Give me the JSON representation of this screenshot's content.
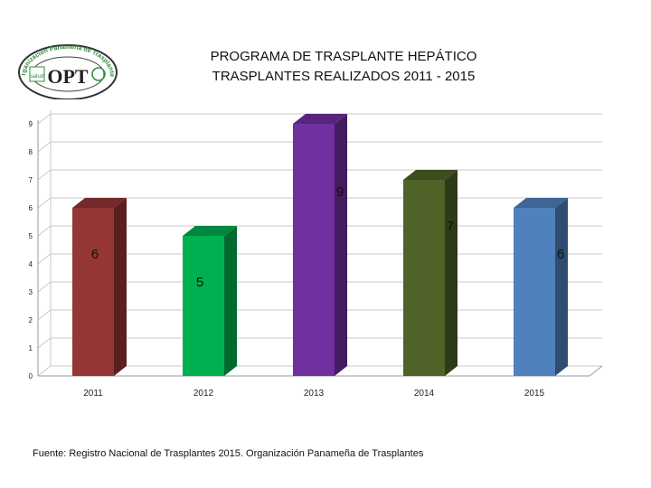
{
  "logo": {
    "arc_text": "Organización Panameña de Trasplantes",
    "mark": "OPT",
    "left_badge": "salud",
    "colors": {
      "ring": "#333333",
      "green": "#2e8b3a",
      "badge_bg": "#ffffff"
    }
  },
  "source": "Fuente: Registro Nacional de Trasplantes 2015.  Organización Panameña de Trasplantes",
  "chart_data": {
    "type": "bar",
    "title": "PROGRAMA DE TRASPLANTE HEPÁTICO",
    "subtitle": "TRASPLANTES REALIZADOS  2011 - 2015",
    "categories": [
      "2011",
      "2012",
      "2013",
      "2014",
      "2015"
    ],
    "values": [
      6,
      5,
      9,
      7,
      6
    ],
    "data_labels": [
      "6",
      "5",
      "9",
      "7",
      "6"
    ],
    "yticks": [
      "0",
      "1",
      "2",
      "3",
      "4",
      "5",
      "6",
      "7",
      "8",
      "9"
    ],
    "ylim": [
      0,
      9
    ],
    "xlabel": "",
    "ylabel": "",
    "grid": true,
    "legend": "none",
    "colors": [
      "#943634",
      "#00b050",
      "#7030a0",
      "#4f6228",
      "#4f81bd"
    ]
  }
}
